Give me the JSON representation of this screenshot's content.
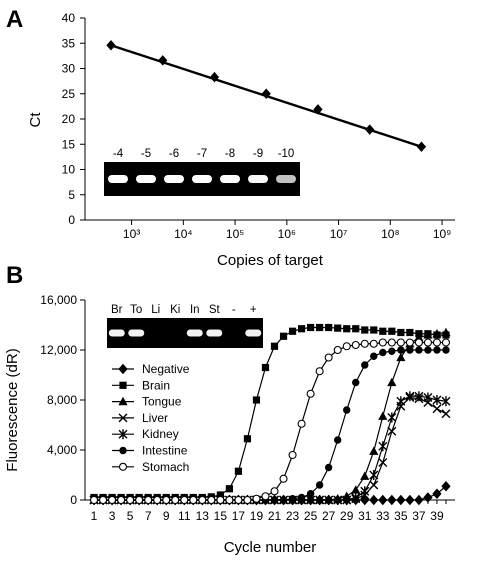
{
  "figure": {
    "panel_a_label": "A",
    "panel_b_label": "B"
  },
  "chart_data": [
    {
      "type": "line",
      "panel": "A",
      "title": "",
      "xlabel": "Copies of target",
      "ylabel": "Ct",
      "xscale": "log",
      "x_tick_labels": [
        "10³",
        "10⁴",
        "10⁵",
        "10⁶",
        "10⁷",
        "10⁸",
        "10⁹"
      ],
      "y_ticks": [
        0,
        5,
        10,
        15,
        20,
        25,
        30,
        35,
        40
      ],
      "ylim": [
        0,
        40
      ],
      "series": [
        {
          "x": [
            400,
            4000,
            40000,
            400000,
            4000000,
            40000000,
            400000000
          ],
          "y": [
            34.6,
            31.6,
            28.3,
            25.0,
            21.9,
            17.9,
            14.5
          ]
        }
      ],
      "fit_line": {
        "x": [
          400,
          400000000
        ],
        "y": [
          34.6,
          14.5
        ]
      },
      "gel_lanes": [
        "-4",
        "-5",
        "-6",
        "-7",
        "-8",
        "-9",
        "-10"
      ],
      "gel_band_intensity": [
        1,
        1,
        1,
        1,
        1,
        0.95,
        0.55
      ],
      "grid": false,
      "legend": "none"
    },
    {
      "type": "line",
      "panel": "B",
      "title": "",
      "xlabel": "Cycle number",
      "ylabel": "Fluorescence (dR)",
      "x_tick_labels": [
        "1",
        "3",
        "5",
        "7",
        "9",
        "11",
        "13",
        "15",
        "17",
        "19",
        "21",
        "23",
        "25",
        "27",
        "29",
        "31",
        "33",
        "35",
        "37",
        "39"
      ],
      "y_tick_labels": [
        "0",
        "4,000",
        "8,000",
        "12,000",
        "16,000"
      ],
      "ylim": [
        0,
        16000
      ],
      "xlim": [
        1,
        40
      ],
      "x": [
        1,
        2,
        3,
        4,
        5,
        6,
        7,
        8,
        9,
        10,
        11,
        12,
        13,
        14,
        15,
        16,
        17,
        18,
        19,
        20,
        21,
        22,
        23,
        24,
        25,
        26,
        27,
        28,
        29,
        30,
        31,
        32,
        33,
        34,
        35,
        36,
        37,
        38,
        39,
        40
      ],
      "series": [
        {
          "name": "Negative",
          "marker": "diamond",
          "values": [
            0,
            0,
            0,
            0,
            0,
            0,
            0,
            0,
            0,
            0,
            0,
            0,
            0,
            0,
            0,
            0,
            0,
            0,
            0,
            0,
            0,
            0,
            0,
            0,
            0,
            0,
            0,
            0,
            0,
            0,
            0,
            0,
            0,
            0,
            0,
            0,
            0,
            200,
            500,
            1100
          ]
        },
        {
          "name": "Brain",
          "marker": "square",
          "values": [
            200,
            200,
            200,
            200,
            200,
            200,
            200,
            200,
            200,
            200,
            200,
            200,
            200,
            250,
            400,
            900,
            2300,
            4900,
            8000,
            10600,
            12300,
            13100,
            13500,
            13700,
            13800,
            13800,
            13800,
            13750,
            13700,
            13700,
            13600,
            13600,
            13500,
            13500,
            13400,
            13400,
            13300,
            13300,
            13200,
            13200
          ]
        },
        {
          "name": "Tongue",
          "marker": "triangle",
          "values": [
            0,
            0,
            0,
            0,
            0,
            0,
            0,
            0,
            0,
            0,
            0,
            0,
            0,
            0,
            0,
            0,
            0,
            0,
            0,
            0,
            0,
            0,
            0,
            0,
            0,
            0,
            0,
            100,
            300,
            800,
            1900,
            3900,
            6700,
            9400,
            11400,
            12500,
            13000,
            13200,
            13300,
            13400
          ]
        },
        {
          "name": "Liver",
          "marker": "x",
          "values": [
            0,
            0,
            0,
            0,
            0,
            0,
            0,
            0,
            0,
            0,
            0,
            0,
            0,
            0,
            0,
            0,
            0,
            0,
            0,
            0,
            0,
            0,
            0,
            0,
            0,
            0,
            0,
            0,
            0,
            100,
            400,
            1200,
            3000,
            5500,
            7500,
            8200,
            8100,
            7800,
            7300,
            6900
          ]
        },
        {
          "name": "Kidney",
          "marker": "star",
          "values": [
            0,
            0,
            0,
            0,
            0,
            0,
            0,
            0,
            0,
            0,
            0,
            0,
            0,
            0,
            0,
            0,
            0,
            0,
            0,
            0,
            0,
            0,
            0,
            0,
            0,
            0,
            0,
            0,
            0,
            200,
            700,
            2000,
            4300,
            6600,
            7900,
            8300,
            8300,
            8200,
            8000,
            7900
          ]
        },
        {
          "name": "Intestine",
          "marker": "circle",
          "values": [
            0,
            0,
            0,
            0,
            0,
            0,
            0,
            0,
            0,
            0,
            0,
            0,
            0,
            0,
            0,
            0,
            0,
            0,
            0,
            0,
            0,
            0,
            100,
            200,
            500,
            1200,
            2600,
            4800,
            7200,
            9400,
            10800,
            11500,
            11800,
            11900,
            12000,
            12000,
            12000,
            12000,
            12000,
            12000
          ]
        },
        {
          "name": "Stomach",
          "marker": "open-circle",
          "values": [
            0,
            0,
            0,
            0,
            0,
            0,
            0,
            0,
            0,
            0,
            0,
            0,
            0,
            0,
            0,
            0,
            0,
            0,
            100,
            300,
            700,
            1700,
            3600,
            6100,
            8500,
            10300,
            11400,
            12000,
            12300,
            12400,
            12500,
            12500,
            12600,
            12600,
            12600,
            12600,
            12600,
            12600,
            12600,
            12600
          ]
        }
      ],
      "gel_lanes": [
        "Br",
        "To",
        "Li",
        "Ki",
        "In",
        "St",
        "-",
        "+"
      ],
      "gel_band_intensity": [
        1,
        1,
        0,
        0,
        1,
        1,
        0,
        1
      ],
      "grid": false,
      "legend": "center-left"
    }
  ]
}
